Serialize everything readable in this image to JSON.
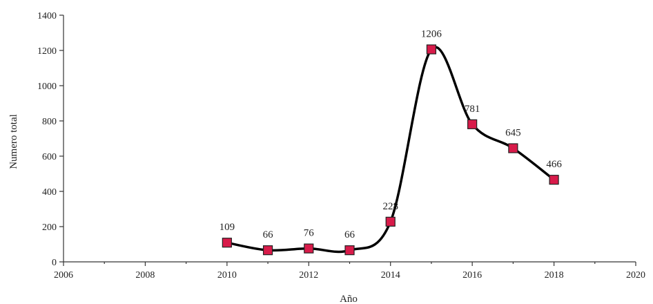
{
  "chart_data": {
    "type": "line",
    "title": "",
    "xlabel": "Año",
    "ylabel": "Numero total",
    "xlim": [
      2006,
      2020
    ],
    "ylim": [
      0,
      1400
    ],
    "x_ticks": [
      2006,
      2008,
      2010,
      2012,
      2014,
      2016,
      2018,
      2020
    ],
    "y_ticks": [
      0,
      200,
      400,
      600,
      800,
      1000,
      1200,
      1400
    ],
    "grid": false,
    "legend": "none",
    "series": [
      {
        "color": "#000000",
        "marker_color": "#d81b4a",
        "marker": "square",
        "smooth": true,
        "x": [
          2010,
          2011,
          2012,
          2013,
          2014,
          2015,
          2016,
          2017,
          2018
        ],
        "y": [
          109,
          66,
          76,
          66,
          228,
          1206,
          781,
          645,
          466
        ],
        "labels": [
          "109",
          "66",
          "76",
          "66",
          "228",
          "1206",
          "781",
          "645",
          "466"
        ]
      }
    ]
  }
}
